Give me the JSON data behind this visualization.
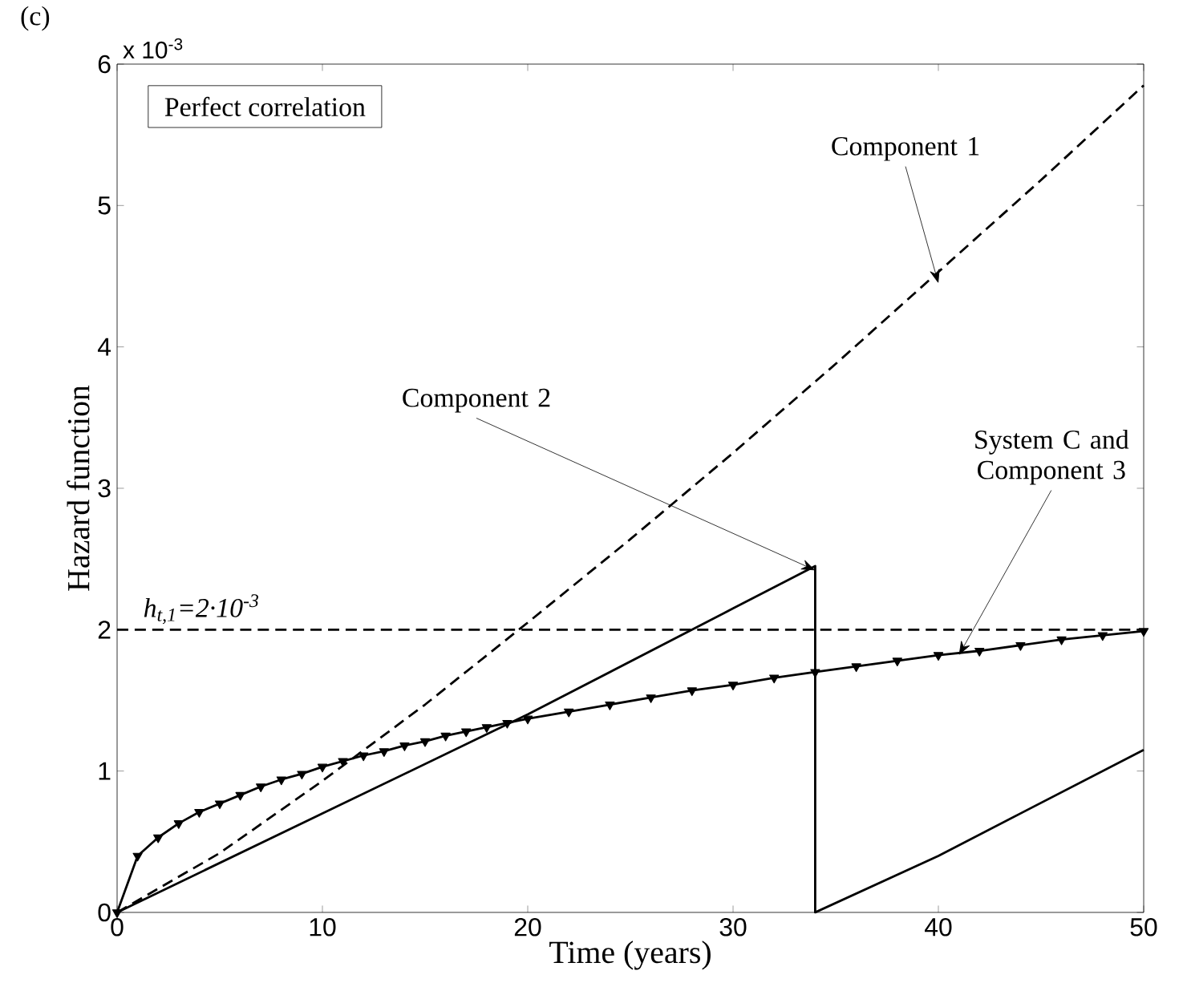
{
  "chart_data": {
    "type": "line",
    "xlabel": "Time (years)",
    "ylabel": "Hazard function",
    "xlim": [
      0,
      50
    ],
    "ylim": [
      0,
      6
    ],
    "xticks": [
      0,
      10,
      20,
      30,
      40,
      50
    ],
    "yticks": [
      0,
      1,
      2,
      3,
      4,
      5,
      6
    ],
    "series": [
      {
        "color": "#000000",
        "line_style": "dashed",
        "marker": "none",
        "x": [
          0,
          5,
          10,
          15,
          20,
          25,
          30,
          35,
          40,
          45,
          50
        ],
        "values": [
          0,
          0.42,
          0.93,
          1.47,
          2.05,
          2.64,
          3.25,
          3.88,
          4.53,
          5.18,
          5.85
        ]
      },
      {
        "color": "#000000",
        "line_style": "solid",
        "marker": "none",
        "x": [
          0,
          10,
          20,
          30,
          34,
          34,
          40,
          50
        ],
        "values": [
          0,
          0.7,
          1.4,
          2.15,
          2.45,
          0,
          0.4,
          1.15
        ]
      },
      {
        "color": "#000000",
        "line_style": "solid",
        "marker": "triangle",
        "x": [
          0,
          1,
          2,
          3,
          4,
          5,
          6,
          7,
          8,
          9,
          10,
          11,
          12,
          13,
          14,
          15,
          16,
          17,
          18,
          19,
          20,
          22,
          24,
          26,
          28,
          30,
          32,
          34,
          36,
          38,
          40,
          42,
          44,
          46,
          48,
          50
        ],
        "values": [
          0,
          0.4,
          0.53,
          0.63,
          0.71,
          0.77,
          0.83,
          0.89,
          0.94,
          0.98,
          1.03,
          1.07,
          1.11,
          1.14,
          1.18,
          1.21,
          1.25,
          1.28,
          1.31,
          1.34,
          1.37,
          1.42,
          1.47,
          1.52,
          1.57,
          1.61,
          1.66,
          1.7,
          1.74,
          1.78,
          1.82,
          1.85,
          1.89,
          1.93,
          1.96,
          1.99
        ]
      }
    ],
    "ref_lines": [
      {
        "axis": "y",
        "value": 2,
        "label": "h$_{t,1}$=2·10$^{-3}$",
        "color": "#000000",
        "line_style": "dashed"
      }
    ],
    "annotations": [
      "(c)",
      "x 10$^{-3}$",
      "Perfect correlation",
      {
        "text": "Component 1",
        "x": 40,
        "y": 4.45
      },
      {
        "text": "Component 2",
        "x": 34,
        "y": 2.42
      },
      {
        "text": "System C and Component 3",
        "x": 41,
        "y": 1.82
      }
    ]
  }
}
